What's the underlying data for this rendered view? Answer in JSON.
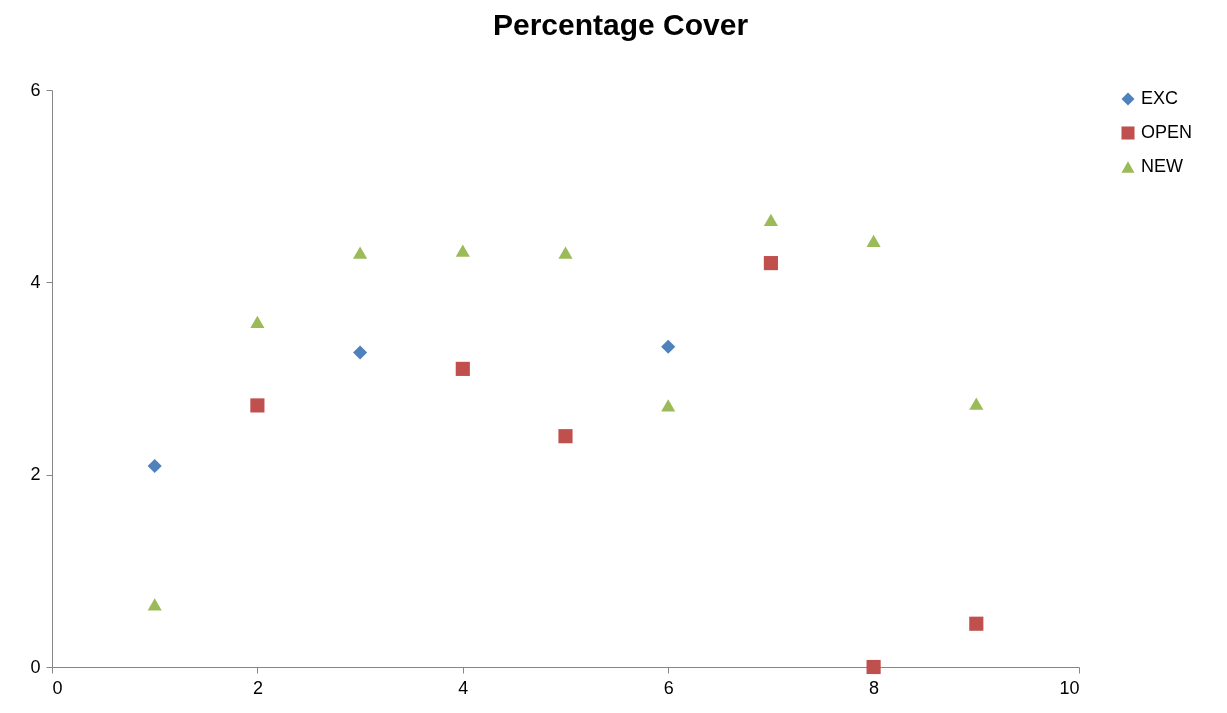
{
  "chart_data": {
    "type": "scatter",
    "title": "Percentage Cover",
    "xlim": [
      0,
      10
    ],
    "xticks": [
      0,
      2,
      4,
      6,
      8,
      10
    ],
    "ylim": [
      0,
      6
    ],
    "yticks": [
      0,
      2,
      4,
      6
    ],
    "grid": false,
    "legend": "right",
    "series": [
      {
        "name": "EXC",
        "color": "#4f81bd",
        "marker": "diamond",
        "x": [
          1,
          3,
          6
        ],
        "values": [
          2.09,
          3.27,
          3.33
        ]
      },
      {
        "name": "OPEN",
        "color": "#c0504d",
        "marker": "square",
        "x": [
          2,
          4,
          5,
          7,
          8,
          9
        ],
        "values": [
          2.72,
          3.1,
          2.4,
          4.2,
          0,
          0.45
        ]
      },
      {
        "name": "NEW",
        "color": "#9bbb59",
        "marker": "triangle",
        "x": [
          1,
          2,
          3,
          4,
          5,
          6,
          7,
          8,
          9
        ],
        "values": [
          0.65,
          3.59,
          4.31,
          4.33,
          4.31,
          2.72,
          4.65,
          4.43,
          2.74
        ]
      }
    ]
  }
}
